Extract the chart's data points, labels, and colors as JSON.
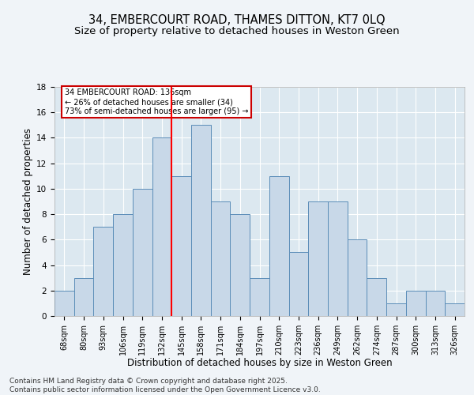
{
  "title1": "34, EMBERCOURT ROAD, THAMES DITTON, KT7 0LQ",
  "title2": "Size of property relative to detached houses in Weston Green",
  "xlabel": "Distribution of detached houses by size in Weston Green",
  "ylabel": "Number of detached properties",
  "categories": [
    "68sqm",
    "80sqm",
    "93sqm",
    "106sqm",
    "119sqm",
    "132sqm",
    "145sqm",
    "158sqm",
    "171sqm",
    "184sqm",
    "197sqm",
    "210sqm",
    "223sqm",
    "236sqm",
    "249sqm",
    "262sqm",
    "274sqm",
    "287sqm",
    "300sqm",
    "313sqm",
    "326sqm"
  ],
  "values": [
    2,
    3,
    7,
    8,
    10,
    14,
    11,
    15,
    9,
    8,
    3,
    11,
    5,
    9,
    9,
    6,
    3,
    1,
    2,
    2,
    1
  ],
  "bar_color": "#c8d8e8",
  "bar_edge_color": "#5b8db8",
  "red_line_x": 5.5,
  "annotation_text": "34 EMBERCOURT ROAD: 136sqm\n← 26% of detached houses are smaller (34)\n73% of semi-detached houses are larger (95) →",
  "annotation_box_color": "#ffffff",
  "annotation_box_edge": "#cc0000",
  "ylim": [
    0,
    18
  ],
  "yticks": [
    0,
    2,
    4,
    6,
    8,
    10,
    12,
    14,
    16,
    18
  ],
  "footer1": "Contains HM Land Registry data © Crown copyright and database right 2025.",
  "footer2": "Contains public sector information licensed under the Open Government Licence v3.0.",
  "bg_color": "#dce8f0",
  "fig_color": "#f0f4f8",
  "grid_color": "#ffffff",
  "title_fontsize": 10.5,
  "subtitle_fontsize": 9.5,
  "axis_fontsize": 8.5,
  "tick_fontsize": 7,
  "footer_fontsize": 6.5,
  "annot_fontsize": 7
}
